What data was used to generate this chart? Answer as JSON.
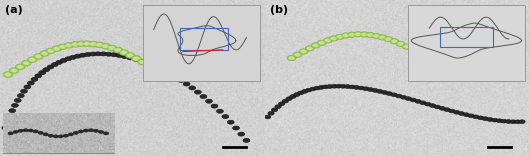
{
  "fig_width": 5.3,
  "fig_height": 1.56,
  "dpi": 100,
  "panel_a_label": "(a)",
  "panel_b_label": "(b)",
  "label_fontsize": 8,
  "label_color": "black",
  "label_fontweight": "bold",
  "scale_bar_color": "black",
  "noise_seed_a": 42,
  "noise_seed_b": 99,
  "green_color": "#a8d060",
  "green_edge_color": "#88b040",
  "dark_particle_color": "#2a2a2a",
  "dark_particle_edge": "#111111",
  "bg_gray": 0.82,
  "bg_std": 0.04,
  "inset_bg": "#d8d8d8",
  "inset_border": "#aaaaaa"
}
